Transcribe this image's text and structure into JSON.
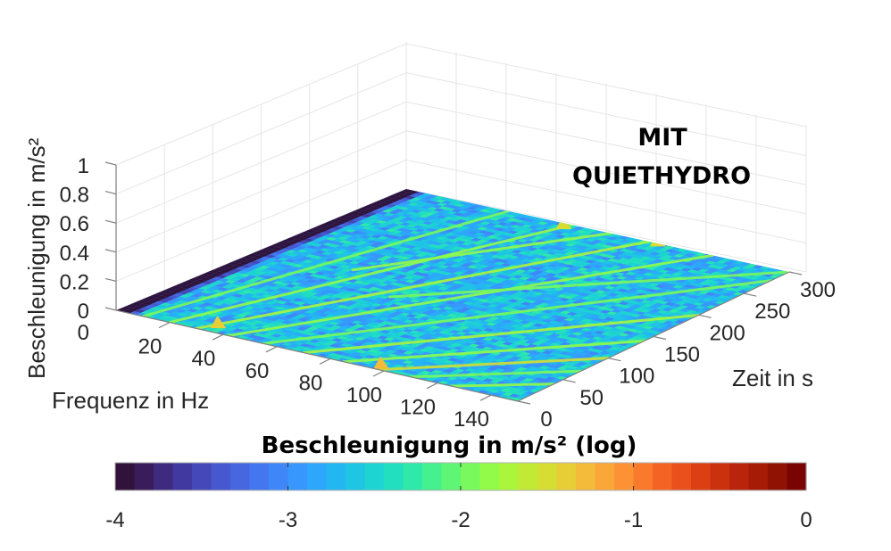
{
  "chart_data": {
    "type": "surface",
    "subtype": "3d-spectrogram (waterfall) viewed in perspective, colored by log10 acceleration",
    "annotation": [
      "MIT",
      "QUIETHYDRO"
    ],
    "xlabel": "Frequenz in Hz",
    "ylabel": "Zeit in s",
    "zlabel": "Beschleunigung in m/s²",
    "x_ticks": [
      20,
      40,
      60,
      80,
      100,
      120,
      140
    ],
    "x_range": [
      0,
      150
    ],
    "y_ticks": [
      0,
      50,
      100,
      150,
      200,
      250,
      300
    ],
    "y_range": [
      0,
      300
    ],
    "z_ticks": [
      "0",
      "0",
      "0.2",
      "0.4",
      "0.6",
      "0.8",
      "1"
    ],
    "z_range": [
      0,
      1
    ],
    "grid": true,
    "colormap": "turbo",
    "colorbar": {
      "title": "Beschleunigung in m/s² (log)",
      "orientation": "horizontal",
      "position": "bottom",
      "range": [
        -4,
        0
      ],
      "ticks": [
        -4,
        -3,
        -2,
        -1,
        0
      ],
      "tick_labels": [
        "-4",
        "-3",
        "-2",
        "-1",
        "0"
      ],
      "colors": [
        "#30123b",
        "#3b1c5a",
        "#3e2a7f",
        "#4139a0",
        "#4448b9",
        "#4657cf",
        "#4667e0",
        "#4477ef",
        "#3f87f8",
        "#3797fd",
        "#2da7fb",
        "#23b7f1",
        "#1ec6e3",
        "#1dd4d2",
        "#22e0bf",
        "#2fe9a9",
        "#45f08f",
        "#5ef674",
        "#79f95d",
        "#92fb4a",
        "#abf53c",
        "#c2ea35",
        "#d6dd33",
        "#e7cd36",
        "#f4bb3a",
        "#faa73a",
        "#fd9235",
        "#fa7a2c",
        "#f46323",
        "#e9501b",
        "#dc3f14",
        "#cc310e",
        "#b9250a",
        "#a51b06",
        "#901203",
        "#7a0403"
      ]
    },
    "surface_description": "Background level ~ -3 to -2.5 (blue/cyan); near 0-5 Hz a dark strip (~ -4); multiple diagonal harmonic ridges (orders rising with time) at ~ -2 to -1.5 (green/yellow), local peaks ~ -1.3 (orange) near 95-100 Hz at t≈0 and near 30-40 Hz."
  }
}
